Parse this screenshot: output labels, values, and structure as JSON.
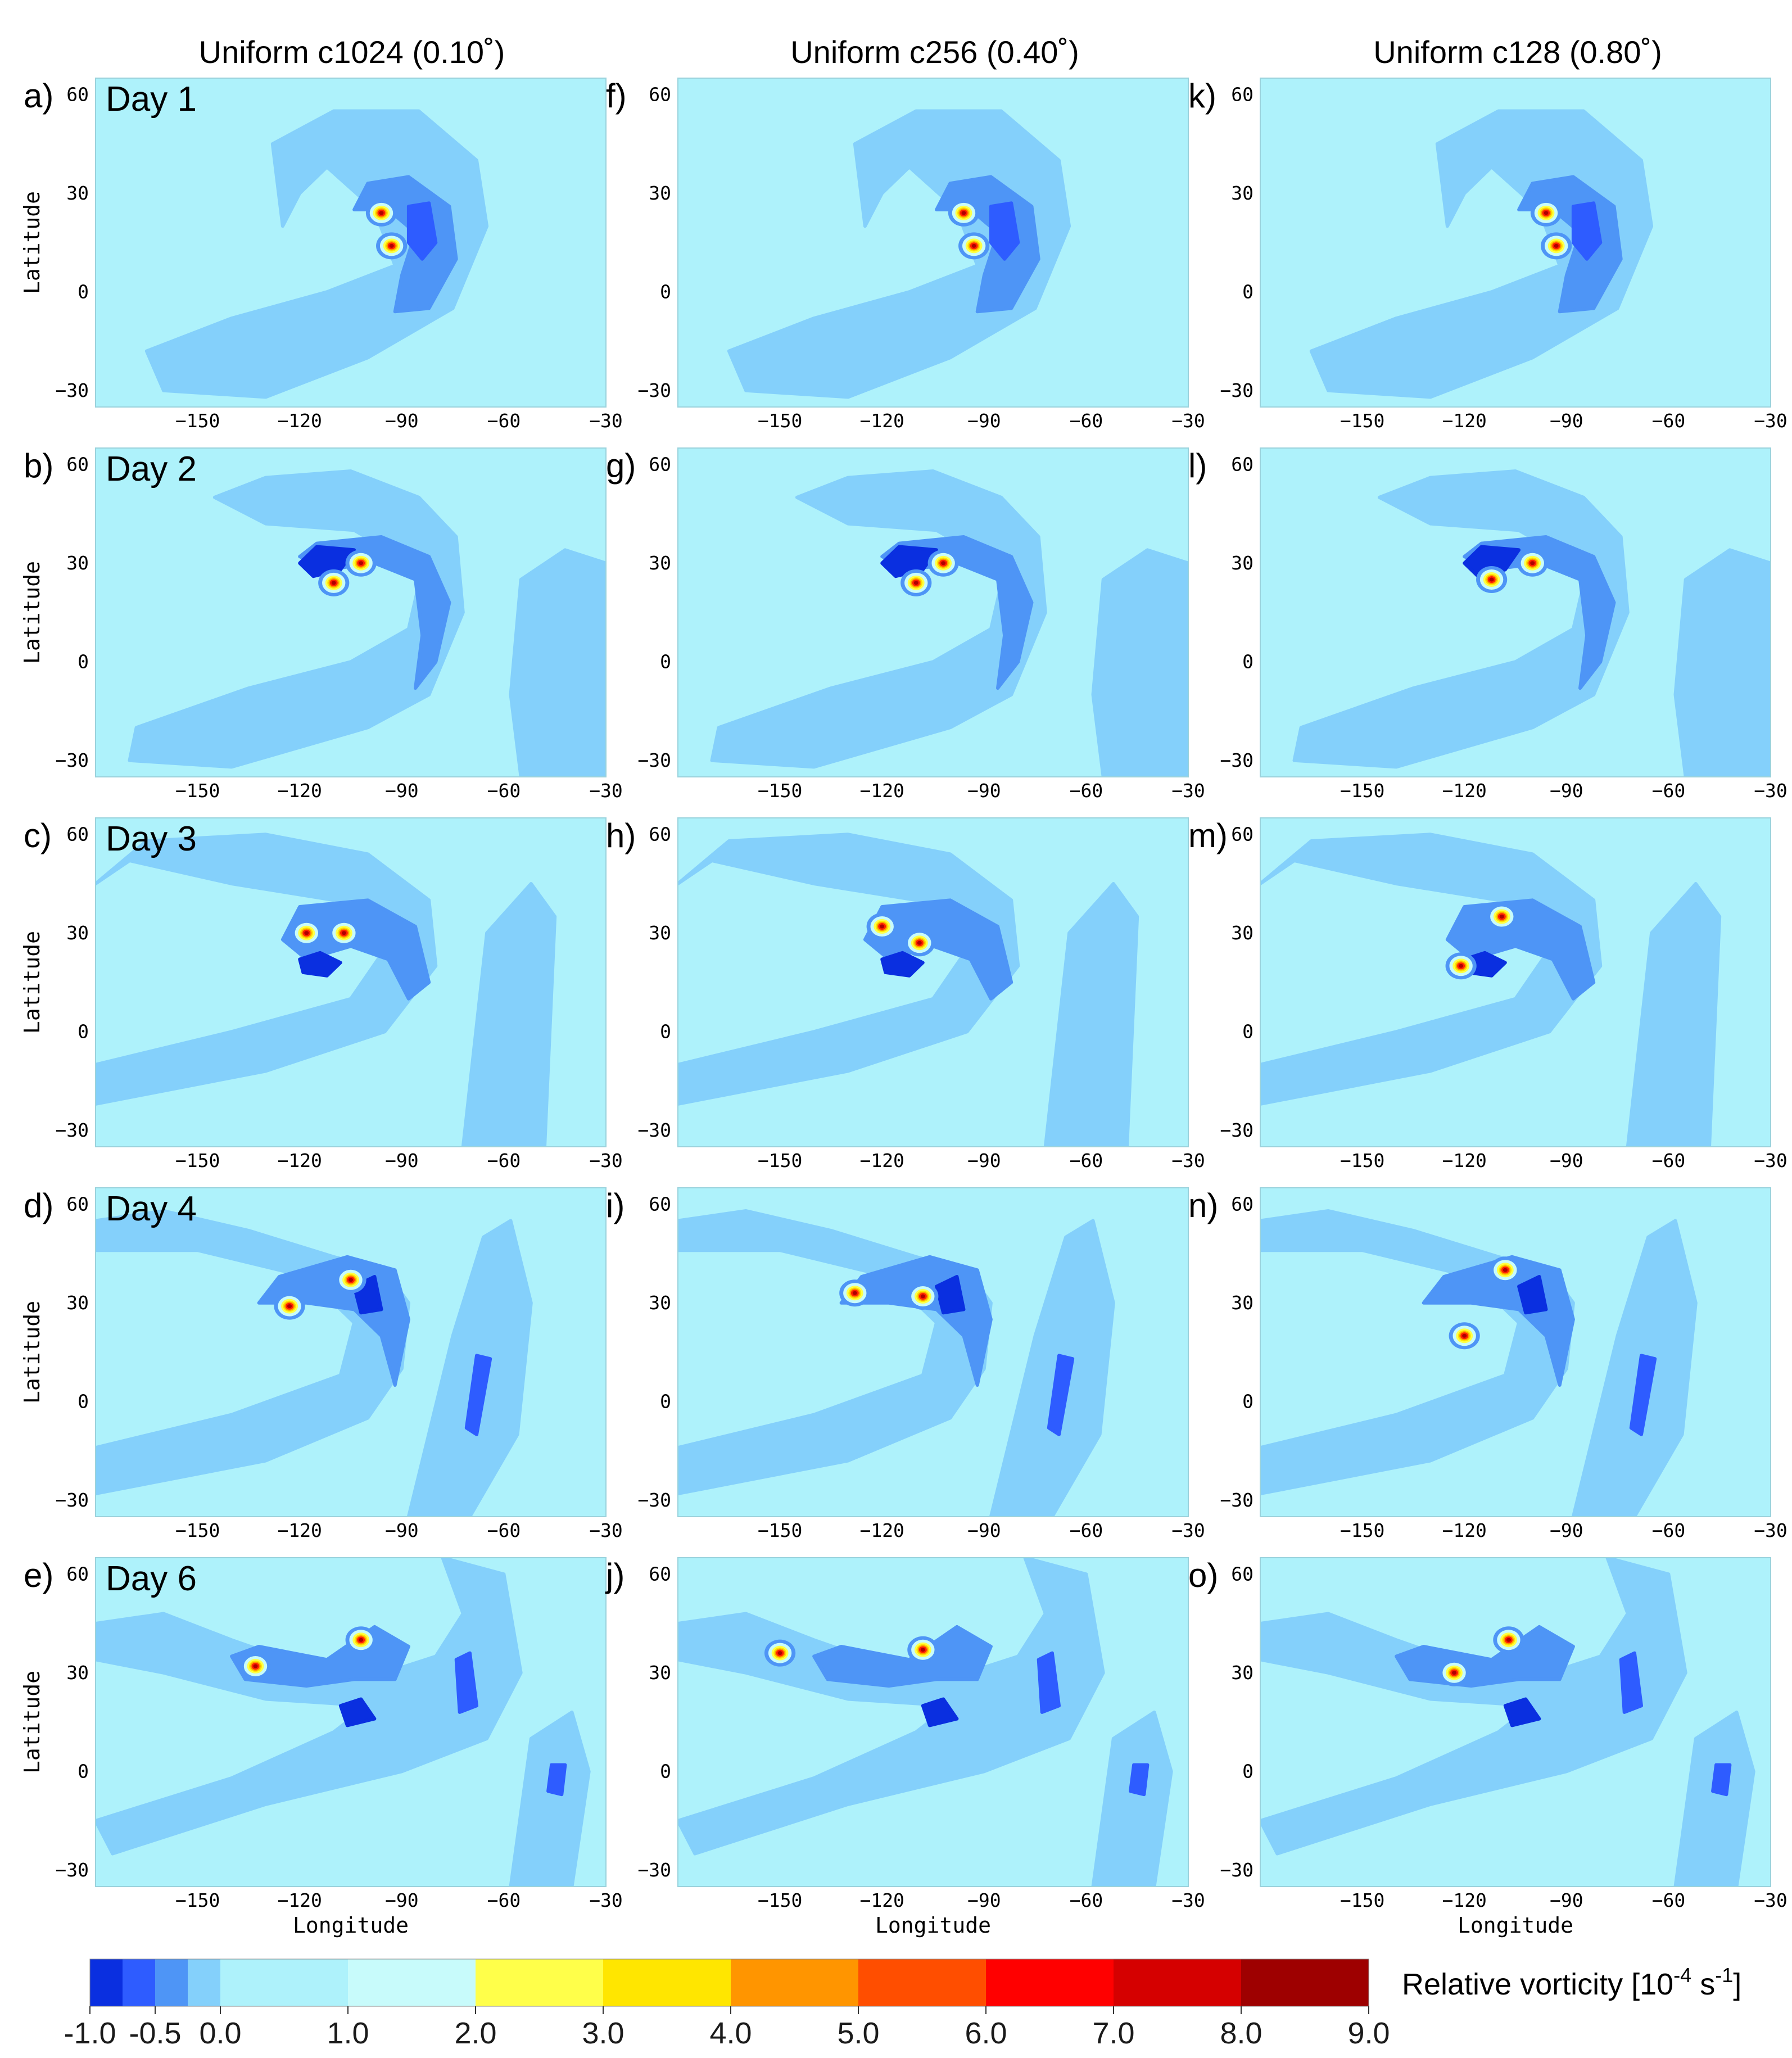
{
  "chart_data": {
    "type": "heatmap",
    "variable": "Relative vorticity",
    "column_titles": [
      "Uniform c1024 (0.10˚)",
      "Uniform c256 (0.40˚)",
      "Uniform c128 (0.80˚)"
    ],
    "row_titles": [
      "Day 1",
      "Day 2",
      "Day 3",
      "Day 4",
      "Day 6"
    ],
    "panel_labels": [
      [
        "a)",
        "f)",
        "k)"
      ],
      [
        "b)",
        "g)",
        "l)"
      ],
      [
        "c)",
        "h)",
        "m)"
      ],
      [
        "d)",
        "i)",
        "n)"
      ],
      [
        "e)",
        "j)",
        "o)"
      ]
    ],
    "xlabel": "Longitude",
    "ylabel": "Latitude",
    "x_ticks": [
      "−150",
      "−120",
      "−90",
      "−60",
      "−30"
    ],
    "y_ticks": [
      "60",
      "30",
      "0",
      "−30"
    ],
    "xlim": [
      -180,
      -30
    ],
    "ylim": [
      -35,
      65
    ],
    "vortices": [
      [
        {
          "day": 1,
          "centers": [
            {
              "lon": -96,
              "lat": 24
            },
            {
              "lon": -93,
              "lat": 14
            }
          ]
        },
        {
          "day": 1,
          "centers": [
            {
              "lon": -96,
              "lat": 24
            },
            {
              "lon": -93,
              "lat": 14
            }
          ]
        },
        {
          "day": 1,
          "centers": [
            {
              "lon": -96,
              "lat": 24
            },
            {
              "lon": -93,
              "lat": 14
            }
          ]
        }
      ],
      [
        {
          "day": 2,
          "centers": [
            {
              "lon": -102,
              "lat": 30
            },
            {
              "lon": -110,
              "lat": 24
            }
          ]
        },
        {
          "day": 2,
          "centers": [
            {
              "lon": -102,
              "lat": 30
            },
            {
              "lon": -110,
              "lat": 24
            }
          ]
        },
        {
          "day": 2,
          "centers": [
            {
              "lon": -100,
              "lat": 30
            },
            {
              "lon": -112,
              "lat": 25
            }
          ]
        }
      ],
      [
        {
          "day": 3,
          "centers": [
            {
              "lon": -118,
              "lat": 30
            },
            {
              "lon": -107,
              "lat": 30
            }
          ]
        },
        {
          "day": 3,
          "centers": [
            {
              "lon": -120,
              "lat": 32
            },
            {
              "lon": -109,
              "lat": 27
            }
          ]
        },
        {
          "day": 3,
          "centers": [
            {
              "lon": -109,
              "lat": 35
            },
            {
              "lon": -121,
              "lat": 20
            }
          ]
        }
      ],
      [
        {
          "day": 4,
          "centers": [
            {
              "lon": -123,
              "lat": 29
            },
            {
              "lon": -105,
              "lat": 37
            }
          ]
        },
        {
          "day": 4,
          "centers": [
            {
              "lon": -128,
              "lat": 33
            },
            {
              "lon": -108,
              "lat": 32
            }
          ]
        },
        {
          "day": 4,
          "centers": [
            {
              "lon": -108,
              "lat": 40
            },
            {
              "lon": -120,
              "lat": 20
            }
          ]
        }
      ],
      [
        {
          "day": 6,
          "centers": [
            {
              "lon": -133,
              "lat": 32
            },
            {
              "lon": -102,
              "lat": 40
            }
          ]
        },
        {
          "day": 6,
          "centers": [
            {
              "lon": -150,
              "lat": 36
            },
            {
              "lon": -108,
              "lat": 37
            }
          ]
        },
        {
          "day": 6,
          "centers": [
            {
              "lon": -123,
              "lat": 30
            },
            {
              "lon": -107,
              "lat": 40
            }
          ]
        }
      ]
    ],
    "colorbar": {
      "label": "Relative vorticity [10",
      "label_exp": "-4",
      "label_unit": " s",
      "label_unit_exp": "-1",
      "label_end": "]",
      "bins": [
        {
          "from": -1.0,
          "to": -0.75,
          "color": "#0a2fe0"
        },
        {
          "from": -0.75,
          "to": -0.5,
          "color": "#2e5cff"
        },
        {
          "from": -0.5,
          "to": -0.25,
          "color": "#4e95f6"
        },
        {
          "from": -0.25,
          "to": 0.0,
          "color": "#84d0fb"
        },
        {
          "from": 0.0,
          "to": 1.0,
          "color": "#aef2fb"
        },
        {
          "from": 1.0,
          "to": 2.0,
          "color": "#c8fbfb"
        },
        {
          "from": 2.0,
          "to": 3.0,
          "color": "#ffff4a"
        },
        {
          "from": 3.0,
          "to": 4.0,
          "color": "#ffe600"
        },
        {
          "from": 4.0,
          "to": 5.0,
          "color": "#ff9500"
        },
        {
          "from": 5.0,
          "to": 6.0,
          "color": "#ff4e00"
        },
        {
          "from": 6.0,
          "to": 7.0,
          "color": "#ff0000"
        },
        {
          "from": 7.0,
          "to": 8.0,
          "color": "#d50000"
        },
        {
          "from": 8.0,
          "to": 9.0,
          "color": "#9e0000"
        }
      ],
      "tick_labels": [
        {
          "value": -1.0,
          "text": "-1.0"
        },
        {
          "value": -0.5,
          "text": "-0.5"
        },
        {
          "value": 0.0,
          "text": "0.0"
        },
        {
          "value": 1.0,
          "text": "1.0"
        },
        {
          "value": 2.0,
          "text": "2.0"
        },
        {
          "value": 3.0,
          "text": "3.0"
        },
        {
          "value": 4.0,
          "text": "4.0"
        },
        {
          "value": 5.0,
          "text": "5.0"
        },
        {
          "value": 6.0,
          "text": "6.0"
        },
        {
          "value": 7.0,
          "text": "7.0"
        },
        {
          "value": 8.0,
          "text": "8.0"
        },
        {
          "value": 9.0,
          "text": "9.0"
        }
      ]
    },
    "colors": {
      "background": "#aef2fb",
      "band_light": "#84d0fb",
      "band_mid": "#4e95f6",
      "band_dark": "#2e5cff",
      "band_darkest": "#0a2fe0"
    }
  }
}
